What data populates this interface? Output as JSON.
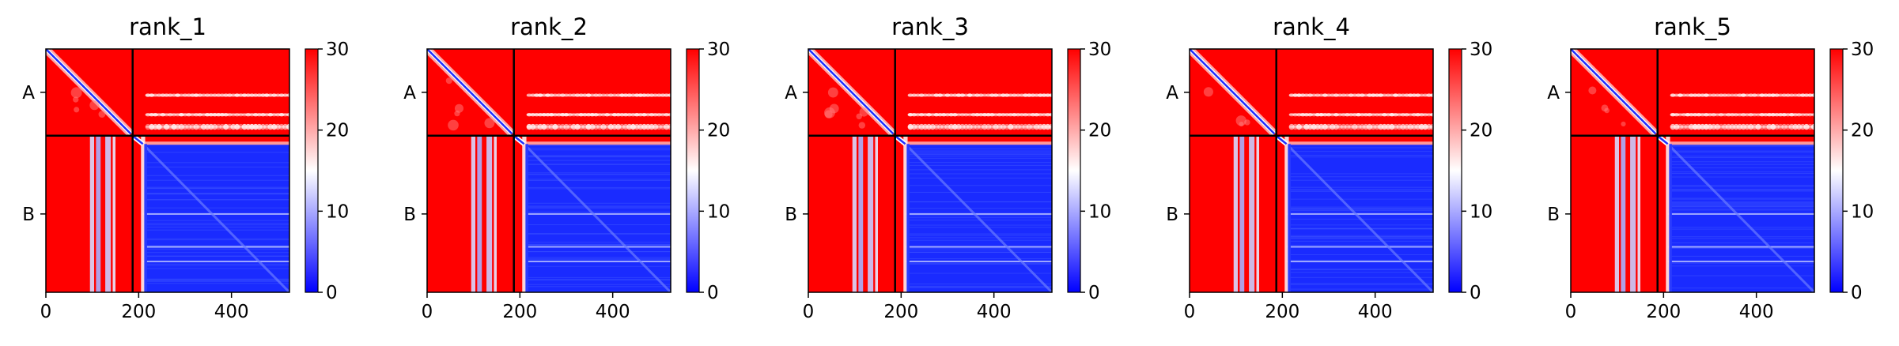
{
  "chart_data": [
    {
      "type": "heatmap",
      "title": "rank_1",
      "x_range": [
        0,
        525
      ],
      "y_range": [
        0,
        525
      ],
      "chain_boundary": 187,
      "x_ticks": [
        "0",
        "200",
        "400"
      ],
      "x_tick_values": [
        0,
        200,
        400
      ],
      "y_tick_labels": [
        "A",
        "B"
      ],
      "colorbar": {
        "min": 0,
        "max": 30,
        "ticks": [
          "0",
          "10",
          "20",
          "30"
        ],
        "colors": [
          "#0000ff",
          "#ffffff",
          "#ff0000"
        ]
      }
    },
    {
      "type": "heatmap",
      "title": "rank_2",
      "x_range": [
        0,
        525
      ],
      "y_range": [
        0,
        525
      ],
      "chain_boundary": 187,
      "x_ticks": [
        "0",
        "200",
        "400"
      ],
      "x_tick_values": [
        0,
        200,
        400
      ],
      "y_tick_labels": [
        "A",
        "B"
      ],
      "colorbar": {
        "min": 0,
        "max": 30,
        "ticks": [
          "0",
          "10",
          "20",
          "30"
        ],
        "colors": [
          "#0000ff",
          "#ffffff",
          "#ff0000"
        ]
      }
    },
    {
      "type": "heatmap",
      "title": "rank_3",
      "x_range": [
        0,
        525
      ],
      "y_range": [
        0,
        525
      ],
      "chain_boundary": 187,
      "x_ticks": [
        "0",
        "200",
        "400"
      ],
      "x_tick_values": [
        0,
        200,
        400
      ],
      "y_tick_labels": [
        "A",
        "B"
      ],
      "colorbar": {
        "min": 0,
        "max": 30,
        "ticks": [
          "0",
          "10",
          "20",
          "30"
        ],
        "colors": [
          "#0000ff",
          "#ffffff",
          "#ff0000"
        ]
      }
    },
    {
      "type": "heatmap",
      "title": "rank_4",
      "x_range": [
        0,
        525
      ],
      "y_range": [
        0,
        525
      ],
      "chain_boundary": 187,
      "x_ticks": [
        "0",
        "200",
        "400"
      ],
      "x_tick_values": [
        0,
        200,
        400
      ],
      "y_tick_labels": [
        "A",
        "B"
      ],
      "colorbar": {
        "min": 0,
        "max": 30,
        "ticks": [
          "0",
          "10",
          "20",
          "30"
        ],
        "colors": [
          "#0000ff",
          "#ffffff",
          "#ff0000"
        ]
      }
    },
    {
      "type": "heatmap",
      "title": "rank_5",
      "x_range": [
        0,
        525
      ],
      "y_range": [
        0,
        525
      ],
      "chain_boundary": 187,
      "x_ticks": [
        "0",
        "200",
        "400"
      ],
      "x_tick_values": [
        0,
        200,
        400
      ],
      "y_tick_labels": [
        "A",
        "B"
      ],
      "colorbar": {
        "min": 0,
        "max": 30,
        "ticks": [
          "0",
          "10",
          "20",
          "30"
        ],
        "colors": [
          "#0000ff",
          "#ffffff",
          "#ff0000"
        ]
      }
    }
  ]
}
